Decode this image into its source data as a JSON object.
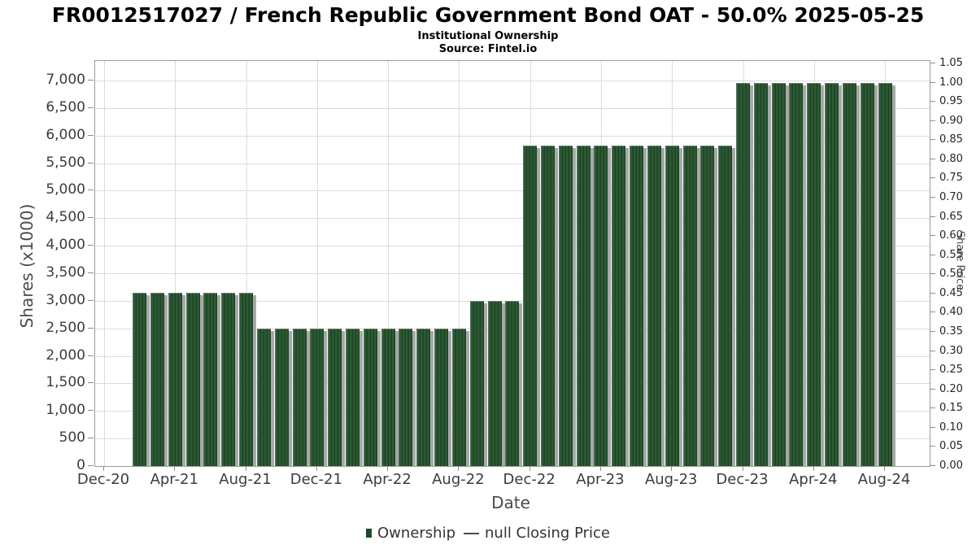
{
  "header": {
    "title": "FR0012517027 / French Republic Government Bond OAT - 50.0% 2025-05-25",
    "subtitle": "Institutional Ownership",
    "source": "Source: Fintel.io"
  },
  "chart_data": {
    "type": "bar",
    "title": "FR0012517027 / French Republic Government Bond OAT - 50.0% 2025-05-25",
    "subtitle": "Institutional Ownership",
    "source": "Source: Fintel.io",
    "xlabel": "Date",
    "ylabel_left": "Shares (x1000)",
    "ylabel_right": "Share Price",
    "x_ticks": [
      "Dec-20",
      "Apr-21",
      "Aug-21",
      "Dec-21",
      "Apr-22",
      "Aug-22",
      "Dec-22",
      "Apr-23",
      "Aug-23",
      "Dec-23",
      "Apr-24",
      "Aug-24"
    ],
    "x_tick_month_step": 4,
    "y_left": {
      "min": 0,
      "max": 7000,
      "step": 500
    },
    "y_right": {
      "min": 0.0,
      "max": 1.05,
      "step": 0.05
    },
    "y_left_tick_labels": [
      "0",
      "500",
      "1,000",
      "1,500",
      "2,000",
      "2,500",
      "3,000",
      "3,500",
      "4,000",
      "4,500",
      "5,000",
      "5,500",
      "6,000",
      "6,500",
      "7,000"
    ],
    "y_right_tick_labels": [
      "0.00",
      "0.05",
      "0.10",
      "0.15",
      "0.20",
      "0.25",
      "0.30",
      "0.35",
      "0.40",
      "0.45",
      "0.50",
      "0.55",
      "0.60",
      "0.65",
      "0.70",
      "0.75",
      "0.80",
      "0.85",
      "0.90",
      "0.95",
      "1.00",
      "1.05"
    ],
    "grid": true,
    "legend_position": "bottom-center",
    "bar_color": "#24512c",
    "series": [
      {
        "name": "Ownership",
        "unit": "shares x1000",
        "points": [
          {
            "label": "Feb-21",
            "month": 2,
            "shares": 3150
          },
          {
            "label": "Mar-21",
            "month": 3,
            "shares": 3150
          },
          {
            "label": "Apr-21",
            "month": 4,
            "shares": 3150
          },
          {
            "label": "May-21",
            "month": 5,
            "shares": 3150
          },
          {
            "label": "Jun-21",
            "month": 6,
            "shares": 3150
          },
          {
            "label": "Jul-21",
            "month": 7,
            "shares": 3150
          },
          {
            "label": "Aug-21",
            "month": 8,
            "shares": 3150
          },
          {
            "label": "Sep-21",
            "month": 9,
            "shares": 2500
          },
          {
            "label": "Oct-21",
            "month": 10,
            "shares": 2500
          },
          {
            "label": "Nov-21",
            "month": 11,
            "shares": 2500
          },
          {
            "label": "Dec-21",
            "month": 12,
            "shares": 2500
          },
          {
            "label": "Jan-22",
            "month": 13,
            "shares": 2500
          },
          {
            "label": "Feb-22",
            "month": 14,
            "shares": 2500
          },
          {
            "label": "Mar-22",
            "month": 15,
            "shares": 2500
          },
          {
            "label": "Apr-22",
            "month": 16,
            "shares": 2500
          },
          {
            "label": "May-22",
            "month": 17,
            "shares": 2500
          },
          {
            "label": "Jun-22",
            "month": 18,
            "shares": 2500
          },
          {
            "label": "Jul-22",
            "month": 19,
            "shares": 2500
          },
          {
            "label": "Aug-22",
            "month": 20,
            "shares": 2500
          },
          {
            "label": "Sep-22",
            "month": 21,
            "shares": 3000
          },
          {
            "label": "Oct-22",
            "month": 22,
            "shares": 3000
          },
          {
            "label": "Nov-22",
            "month": 23,
            "shares": 3000
          },
          {
            "label": "Dec-22",
            "month": 24,
            "shares": 5820
          },
          {
            "label": "Jan-23",
            "month": 25,
            "shares": 5820
          },
          {
            "label": "Feb-23",
            "month": 26,
            "shares": 5820
          },
          {
            "label": "Mar-23",
            "month": 27,
            "shares": 5820
          },
          {
            "label": "Apr-23",
            "month": 28,
            "shares": 5820
          },
          {
            "label": "May-23",
            "month": 29,
            "shares": 5820
          },
          {
            "label": "Jun-23",
            "month": 30,
            "shares": 5820
          },
          {
            "label": "Jul-23",
            "month": 31,
            "shares": 5820
          },
          {
            "label": "Aug-23",
            "month": 32,
            "shares": 5820
          },
          {
            "label": "Sep-23",
            "month": 33,
            "shares": 5820
          },
          {
            "label": "Oct-23",
            "month": 34,
            "shares": 5820
          },
          {
            "label": "Nov-23",
            "month": 35,
            "shares": 5820
          },
          {
            "label": "Dec-23",
            "month": 36,
            "shares": 6960
          },
          {
            "label": "Jan-24",
            "month": 37,
            "shares": 6960
          },
          {
            "label": "Feb-24",
            "month": 38,
            "shares": 6960
          },
          {
            "label": "Mar-24",
            "month": 39,
            "shares": 6960
          },
          {
            "label": "Apr-24",
            "month": 40,
            "shares": 6960
          },
          {
            "label": "May-24",
            "month": 41,
            "shares": 6960
          },
          {
            "label": "Jun-24",
            "month": 42,
            "shares": 6960
          },
          {
            "label": "Jul-24",
            "month": 43,
            "shares": 6960
          },
          {
            "label": "Aug-24",
            "month": 44,
            "shares": 6960
          }
        ]
      }
    ],
    "legend": [
      {
        "marker": "square",
        "color": "#1f4928",
        "label": "Ownership"
      },
      {
        "marker": "line",
        "color": "#4a4a4a",
        "label": "null Closing Price"
      }
    ]
  }
}
